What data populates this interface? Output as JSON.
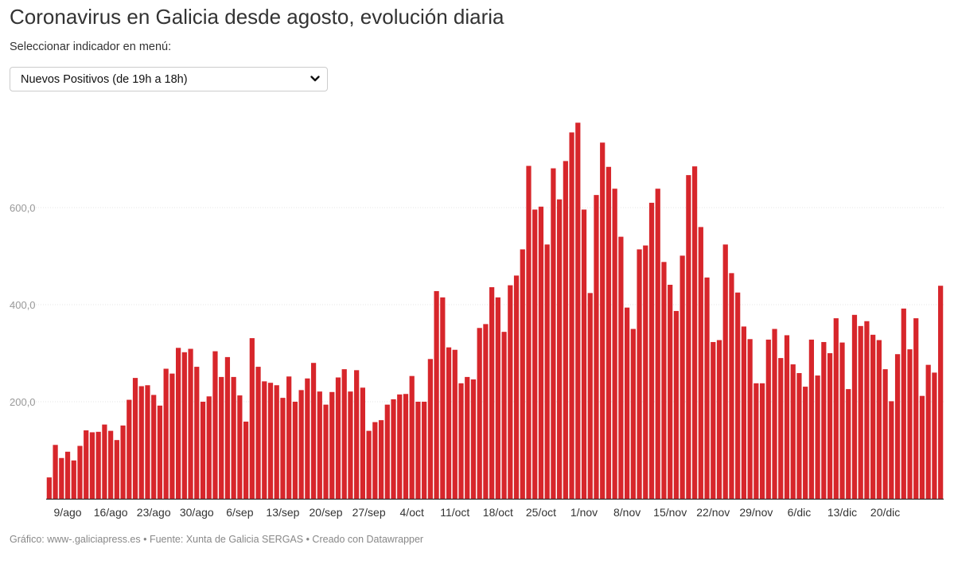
{
  "header": {
    "title": "Coronavirus en Galicia desde agosto, evolución diaria",
    "selector_label": "Seleccionar indicador en menú:",
    "selector_value": "Nuevos Positivos (de 19h a 18h)",
    "selector_icon": "chevron-down-icon"
  },
  "footer": {
    "text": "Gráfico: www-.galiciapress.es • Fuente: Xunta de Galicia SERGAS • Creado con Datawrapper"
  },
  "chart_data": {
    "type": "bar",
    "title": "",
    "xlabel": "",
    "ylabel": "",
    "ylim": [
      0,
      800
    ],
    "grid": true,
    "bar_color": "#d7262b",
    "y_ticks": [
      200,
      400,
      600
    ],
    "y_tick_labels": [
      "200,0",
      "400,0",
      "600,0"
    ],
    "x_tick_labels": [
      "9/ago",
      "16/ago",
      "23/ago",
      "30/ago",
      "6/sep",
      "13/sep",
      "20/sep",
      "27/sep",
      "4/oct",
      "11/oct",
      "18/oct",
      "25/oct",
      "1/nov",
      "8/nov",
      "15/nov",
      "22/nov",
      "29/nov",
      "6/dic",
      "13/dic",
      "20/dic"
    ],
    "categories": [
      "6/ago",
      "7/ago",
      "8/ago",
      "9/ago",
      "10/ago",
      "11/ago",
      "12/ago",
      "13/ago",
      "14/ago",
      "15/ago",
      "16/ago",
      "17/ago",
      "18/ago",
      "19/ago",
      "20/ago",
      "21/ago",
      "22/ago",
      "23/ago",
      "24/ago",
      "25/ago",
      "26/ago",
      "27/ago",
      "28/ago",
      "29/ago",
      "30/ago",
      "31/ago",
      "1/sep",
      "2/sep",
      "3/sep",
      "4/sep",
      "5/sep",
      "6/sep",
      "7/sep",
      "8/sep",
      "9/sep",
      "10/sep",
      "11/sep",
      "12/sep",
      "13/sep",
      "14/sep",
      "15/sep",
      "16/sep",
      "17/sep",
      "18/sep",
      "19/sep",
      "20/sep",
      "21/sep",
      "22/sep",
      "23/sep",
      "24/sep",
      "25/sep",
      "26/sep",
      "27/sep",
      "28/sep",
      "29/sep",
      "30/sep",
      "1/oct",
      "2/oct",
      "3/oct",
      "4/oct",
      "5/oct",
      "6/oct",
      "7/oct",
      "8/oct",
      "9/oct",
      "10/oct",
      "11/oct",
      "12/oct",
      "13/oct",
      "14/oct",
      "15/oct",
      "16/oct",
      "17/oct",
      "18/oct",
      "19/oct",
      "20/oct",
      "21/oct",
      "22/oct",
      "23/oct",
      "24/oct",
      "25/oct",
      "26/oct",
      "27/oct",
      "28/oct",
      "29/oct",
      "30/oct",
      "31/oct",
      "1/nov",
      "2/nov",
      "3/nov",
      "4/nov",
      "5/nov",
      "6/nov",
      "7/nov",
      "8/nov",
      "9/nov",
      "10/nov",
      "11/nov",
      "12/nov",
      "13/nov",
      "14/nov",
      "15/nov",
      "16/nov",
      "17/nov",
      "18/nov",
      "19/nov",
      "20/nov",
      "21/nov",
      "22/nov",
      "23/nov",
      "24/nov",
      "25/nov",
      "26/nov",
      "27/nov",
      "28/nov",
      "29/nov",
      "30/nov",
      "1/dic",
      "2/dic",
      "3/dic",
      "4/dic",
      "5/dic",
      "6/dic",
      "7/dic",
      "8/dic",
      "9/dic",
      "10/dic",
      "11/dic",
      "12/dic",
      "13/dic",
      "14/dic",
      "15/dic",
      "16/dic",
      "17/dic",
      "18/dic",
      "19/dic",
      "20/dic",
      "21/dic",
      "22/dic",
      "23/dic",
      "24/dic",
      "25/dic",
      "26/dic",
      "27/dic",
      "28/dic",
      "29/dic"
    ],
    "values": [
      44,
      111,
      84,
      97,
      79,
      109,
      141,
      137,
      138,
      153,
      140,
      121,
      151,
      204,
      249,
      232,
      234,
      214,
      192,
      268,
      258,
      311,
      302,
      309,
      272,
      200,
      211,
      304,
      251,
      292,
      251,
      213,
      159,
      331,
      272,
      242,
      239,
      234,
      208,
      252,
      200,
      224,
      248,
      280,
      221,
      194,
      220,
      250,
      267,
      221,
      265,
      229,
      140,
      158,
      162,
      194,
      205,
      215,
      216,
      253,
      200,
      200,
      288,
      428,
      415,
      312,
      307,
      238,
      251,
      246,
      352,
      360,
      436,
      415,
      344,
      440,
      460,
      514,
      686,
      596,
      602,
      524,
      681,
      617,
      696,
      755,
      775,
      596,
      424,
      626,
      734,
      684,
      639,
      540,
      394,
      350,
      514,
      522,
      610,
      639,
      488,
      441,
      387,
      501,
      667,
      685,
      560,
      456,
      323,
      327,
      524,
      465,
      425,
      355,
      329,
      238,
      238,
      328,
      350,
      290,
      337,
      277,
      259,
      231,
      328,
      254,
      323,
      300,
      372,
      322,
      226,
      379,
      356,
      366,
      338,
      327,
      267,
      201,
      298,
      392,
      308,
      372,
      212,
      276,
      260,
      439
    ]
  }
}
